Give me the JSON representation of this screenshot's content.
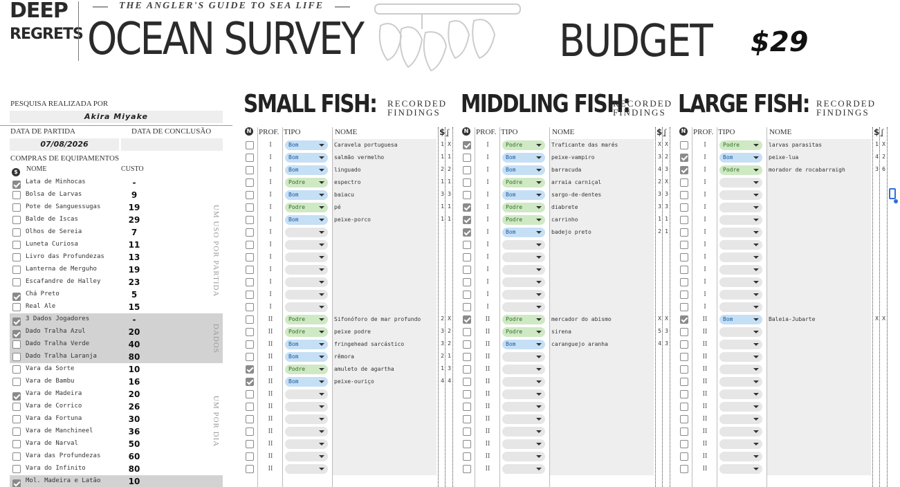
{
  "header": {
    "logo_line1": "DEEP",
    "logo_line2": "REGRETS",
    "tagline": "THE ANGLER'S GUIDE TO SEA LIFE",
    "title": "OCEAN SURVEY",
    "budget_label": "BUDGET",
    "budget_value": "$29"
  },
  "left": {
    "surveyor_label": "PESQUISA REALIZADA POR",
    "surveyor_name": "Akira Miyake",
    "departure_label": "DATA DE PARTIDA",
    "conclusion_label": "DATA DE CONCLUSÃO",
    "departure_date": "07/08/2026",
    "conclusion_date": "",
    "equipment_label": "COMPRAS DE EQUIPAMENTOS",
    "col_name": "NOME",
    "col_cost": "CUSTO",
    "group_once": "UM USO POR PARTIDA",
    "group_dice": "DADOS",
    "group_daily": "UM POR DIA",
    "equipment": [
      {
        "name": "Lata de Minhocas",
        "cost": "-",
        "checked": true,
        "grey": false
      },
      {
        "name": "Bolsa de Larvas",
        "cost": "9",
        "checked": false,
        "grey": false
      },
      {
        "name": "Pote de Sanguessugas",
        "cost": "19",
        "checked": false,
        "grey": false
      },
      {
        "name": "Balde de Iscas",
        "cost": "29",
        "checked": false,
        "grey": false
      },
      {
        "name": "Olhos de Sereia",
        "cost": "7",
        "checked": false,
        "grey": false
      },
      {
        "name": "Luneta Curiosa",
        "cost": "11",
        "checked": false,
        "grey": false
      },
      {
        "name": "Livro das Profundezas",
        "cost": "13",
        "checked": false,
        "grey": false
      },
      {
        "name": "Lanterna de Merguho",
        "cost": "19",
        "checked": false,
        "grey": false
      },
      {
        "name": "Escafandre de Halley",
        "cost": "23",
        "checked": false,
        "grey": false
      },
      {
        "name": "Chá Preto",
        "cost": "5",
        "checked": true,
        "grey": false
      },
      {
        "name": "Real Ale",
        "cost": "15",
        "checked": false,
        "grey": false
      },
      {
        "name": "3 Dados Jogadores",
        "cost": "-",
        "checked": true,
        "grey": true
      },
      {
        "name": "Dado Tralha Azul",
        "cost": "20",
        "checked": true,
        "grey": true
      },
      {
        "name": "Dado Tralha Verde",
        "cost": "40",
        "checked": false,
        "grey": true
      },
      {
        "name": "Dado Tralha Laranja",
        "cost": "80",
        "checked": false,
        "grey": true
      },
      {
        "name": "Vara da Sorte",
        "cost": "10",
        "checked": false,
        "grey": false
      },
      {
        "name": "Vara de Bambu",
        "cost": "16",
        "checked": false,
        "grey": false
      },
      {
        "name": "Vara de Madeira",
        "cost": "20",
        "checked": true,
        "grey": false
      },
      {
        "name": "Vara de Corrico",
        "cost": "26",
        "checked": false,
        "grey": false
      },
      {
        "name": "Vara da Fortuna",
        "cost": "30",
        "checked": false,
        "grey": false
      },
      {
        "name": "Vara de Manchineel",
        "cost": "36",
        "checked": false,
        "grey": false
      },
      {
        "name": "Vara de Narval",
        "cost": "50",
        "checked": false,
        "grey": false
      },
      {
        "name": "Vara das Profundezas",
        "cost": "60",
        "checked": false,
        "grey": false
      },
      {
        "name": "Vara do Infinito",
        "cost": "80",
        "checked": false,
        "grey": false
      },
      {
        "name": "Mol. Madeira e Latão",
        "cost": "10",
        "checked": true,
        "grey": true
      }
    ]
  },
  "sections": [
    {
      "title": "SMALL FISH:",
      "sub1": "RECORDED",
      "sub2": "FINDINGS",
      "col_prof": "PROF.",
      "col_tipo": "TIPO",
      "col_nome": "NOME",
      "rows": [
        {
          "checked": false,
          "prof": "I",
          "tipo": "Bom",
          "nome": "Caravela portuguesa",
          "v1": "1",
          "v2": "X"
        },
        {
          "checked": false,
          "prof": "I",
          "tipo": "Bom",
          "nome": "salmão vermelho",
          "v1": "1",
          "v2": "1"
        },
        {
          "checked": false,
          "prof": "I",
          "tipo": "Bom",
          "nome": "linguado",
          "v1": "2",
          "v2": "2"
        },
        {
          "checked": false,
          "prof": "I",
          "tipo": "Podre",
          "nome": "espectro",
          "v1": "1",
          "v2": "1"
        },
        {
          "checked": false,
          "prof": "I",
          "tipo": "Bom",
          "nome": "baiacu",
          "v1": "3",
          "v2": "3"
        },
        {
          "checked": false,
          "prof": "I",
          "tipo": "Podre",
          "nome": "pé",
          "v1": "1",
          "v2": "1"
        },
        {
          "checked": false,
          "prof": "I",
          "tipo": "Bom",
          "nome": "peixe-porco",
          "v1": "1",
          "v2": "1"
        },
        {
          "checked": false,
          "prof": "I",
          "tipo": "",
          "nome": "",
          "v1": "",
          "v2": ""
        },
        {
          "checked": false,
          "prof": "I",
          "tipo": "",
          "nome": "",
          "v1": "",
          "v2": ""
        },
        {
          "checked": false,
          "prof": "I",
          "tipo": "",
          "nome": "",
          "v1": "",
          "v2": ""
        },
        {
          "checked": false,
          "prof": "I",
          "tipo": "",
          "nome": "",
          "v1": "",
          "v2": ""
        },
        {
          "checked": false,
          "prof": "I",
          "tipo": "",
          "nome": "",
          "v1": "",
          "v2": ""
        },
        {
          "checked": false,
          "prof": "I",
          "tipo": "",
          "nome": "",
          "v1": "",
          "v2": ""
        },
        {
          "checked": false,
          "prof": "I",
          "tipo": "",
          "nome": "",
          "v1": "",
          "v2": ""
        },
        {
          "checked": false,
          "prof": "II",
          "tipo": "Podre",
          "nome": "Sifonóforo de mar profundo",
          "v1": "2",
          "v2": "X"
        },
        {
          "checked": false,
          "prof": "II",
          "tipo": "Podre",
          "nome": "peixe podre",
          "v1": "3",
          "v2": "2"
        },
        {
          "checked": false,
          "prof": "II",
          "tipo": "Bom",
          "nome": "fringehead sarcástico",
          "v1": "3",
          "v2": "2"
        },
        {
          "checked": false,
          "prof": "II",
          "tipo": "Bom",
          "nome": "rêmora",
          "v1": "2",
          "v2": "1"
        },
        {
          "checked": true,
          "prof": "II",
          "tipo": "Podre",
          "nome": "amuleto de agartha",
          "v1": "1",
          "v2": "3"
        },
        {
          "checked": true,
          "prof": "II",
          "tipo": "Bom",
          "nome": "peixe-ouriço",
          "v1": "4",
          "v2": "4"
        },
        {
          "checked": false,
          "prof": "II",
          "tipo": "",
          "nome": "",
          "v1": "",
          "v2": ""
        },
        {
          "checked": false,
          "prof": "II",
          "tipo": "",
          "nome": "",
          "v1": "",
          "v2": ""
        },
        {
          "checked": false,
          "prof": "II",
          "tipo": "",
          "nome": "",
          "v1": "",
          "v2": ""
        },
        {
          "checked": false,
          "prof": "II",
          "tipo": "",
          "nome": "",
          "v1": "",
          "v2": ""
        },
        {
          "checked": false,
          "prof": "II",
          "tipo": "",
          "nome": "",
          "v1": "",
          "v2": ""
        },
        {
          "checked": false,
          "prof": "II",
          "tipo": "",
          "nome": "",
          "v1": "",
          "v2": ""
        },
        {
          "checked": false,
          "prof": "II",
          "tipo": "",
          "nome": "",
          "v1": "",
          "v2": ""
        }
      ]
    },
    {
      "title": "MIDDLING FISH:",
      "sub1": "RECORDED",
      "sub2": "FINDINGS",
      "col_prof": "PROF.",
      "col_tipo": "TIPO",
      "col_nome": "NOME",
      "rows": [
        {
          "checked": true,
          "prof": "I",
          "tipo": "Podre",
          "nome": "Traficante das marés",
          "v1": "X",
          "v2": "X"
        },
        {
          "checked": false,
          "prof": "I",
          "tipo": "Bom",
          "nome": "peixe-vampiro",
          "v1": "3",
          "v2": "2"
        },
        {
          "checked": false,
          "prof": "I",
          "tipo": "Bom",
          "nome": "barracuda",
          "v1": "4",
          "v2": "3"
        },
        {
          "checked": false,
          "prof": "I",
          "tipo": "Podre",
          "nome": "arraia carniçal",
          "v1": "2",
          "v2": "X"
        },
        {
          "checked": false,
          "prof": "I",
          "tipo": "Bom",
          "nome": "sargo-de-dentes",
          "v1": "3",
          "v2": "3"
        },
        {
          "checked": true,
          "prof": "I",
          "tipo": "Podre",
          "nome": "diabrete",
          "v1": "3",
          "v2": "3"
        },
        {
          "checked": true,
          "prof": "I",
          "tipo": "Podre",
          "nome": "carrinho",
          "v1": "1",
          "v2": "1"
        },
        {
          "checked": true,
          "prof": "I",
          "tipo": "Bom",
          "nome": "badejo preto",
          "v1": "2",
          "v2": "1"
        },
        {
          "checked": false,
          "prof": "I",
          "tipo": "",
          "nome": "",
          "v1": "",
          "v2": ""
        },
        {
          "checked": false,
          "prof": "I",
          "tipo": "",
          "nome": "",
          "v1": "",
          "v2": ""
        },
        {
          "checked": false,
          "prof": "I",
          "tipo": "",
          "nome": "",
          "v1": "",
          "v2": ""
        },
        {
          "checked": false,
          "prof": "I",
          "tipo": "",
          "nome": "",
          "v1": "",
          "v2": ""
        },
        {
          "checked": false,
          "prof": "I",
          "tipo": "",
          "nome": "",
          "v1": "",
          "v2": ""
        },
        {
          "checked": false,
          "prof": "I",
          "tipo": "",
          "nome": "",
          "v1": "",
          "v2": ""
        },
        {
          "checked": true,
          "prof": "II",
          "tipo": "Podre",
          "nome": "mercador do abismo",
          "v1": "X",
          "v2": "X"
        },
        {
          "checked": false,
          "prof": "II",
          "tipo": "Podre",
          "nome": "sirena",
          "v1": "5",
          "v2": "3"
        },
        {
          "checked": false,
          "prof": "II",
          "tipo": "Bom",
          "nome": "caranguejo aranha",
          "v1": "4",
          "v2": "3"
        },
        {
          "checked": false,
          "prof": "II",
          "tipo": "",
          "nome": "",
          "v1": "",
          "v2": ""
        },
        {
          "checked": false,
          "prof": "II",
          "tipo": "",
          "nome": "",
          "v1": "",
          "v2": ""
        },
        {
          "checked": false,
          "prof": "II",
          "tipo": "",
          "nome": "",
          "v1": "",
          "v2": ""
        },
        {
          "checked": false,
          "prof": "II",
          "tipo": "",
          "nome": "",
          "v1": "",
          "v2": ""
        },
        {
          "checked": false,
          "prof": "II",
          "tipo": "",
          "nome": "",
          "v1": "",
          "v2": ""
        },
        {
          "checked": false,
          "prof": "II",
          "tipo": "",
          "nome": "",
          "v1": "",
          "v2": ""
        },
        {
          "checked": false,
          "prof": "II",
          "tipo": "",
          "nome": "",
          "v1": "",
          "v2": ""
        },
        {
          "checked": false,
          "prof": "II",
          "tipo": "",
          "nome": "",
          "v1": "",
          "v2": ""
        },
        {
          "checked": false,
          "prof": "II",
          "tipo": "",
          "nome": "",
          "v1": "",
          "v2": ""
        },
        {
          "checked": false,
          "prof": "II",
          "tipo": "",
          "nome": "",
          "v1": "",
          "v2": ""
        }
      ]
    },
    {
      "title": "LARGE FISH:",
      "sub1": "RECORDED",
      "sub2": "FINDINGS",
      "col_prof": "PROF.",
      "col_tipo": "TIPO",
      "col_nome": "NOME",
      "rows": [
        {
          "checked": false,
          "prof": "I",
          "tipo": "Podre",
          "nome": "larvas parasitas",
          "v1": "1",
          "v2": "X"
        },
        {
          "checked": true,
          "prof": "I",
          "tipo": "Bom",
          "nome": "peixe-lua",
          "v1": "4",
          "v2": "2"
        },
        {
          "checked": true,
          "prof": "I",
          "tipo": "Podre",
          "nome": "morador de rocabarraigh",
          "v1": "3",
          "v2": "6"
        },
        {
          "checked": false,
          "prof": "I",
          "tipo": "",
          "nome": "",
          "v1": "",
          "v2": ""
        },
        {
          "checked": false,
          "prof": "I",
          "tipo": "",
          "nome": "",
          "v1": "",
          "v2": ""
        },
        {
          "checked": false,
          "prof": "I",
          "tipo": "",
          "nome": "",
          "v1": "",
          "v2": ""
        },
        {
          "checked": false,
          "prof": "I",
          "tipo": "",
          "nome": "",
          "v1": "",
          "v2": ""
        },
        {
          "checked": false,
          "prof": "I",
          "tipo": "",
          "nome": "",
          "v1": "",
          "v2": ""
        },
        {
          "checked": false,
          "prof": "I",
          "tipo": "",
          "nome": "",
          "v1": "",
          "v2": ""
        },
        {
          "checked": false,
          "prof": "I",
          "tipo": "",
          "nome": "",
          "v1": "",
          "v2": ""
        },
        {
          "checked": false,
          "prof": "I",
          "tipo": "",
          "nome": "",
          "v1": "",
          "v2": ""
        },
        {
          "checked": false,
          "prof": "I",
          "tipo": "",
          "nome": "",
          "v1": "",
          "v2": ""
        },
        {
          "checked": false,
          "prof": "I",
          "tipo": "",
          "nome": "",
          "v1": "",
          "v2": ""
        },
        {
          "checked": false,
          "prof": "I",
          "tipo": "",
          "nome": "",
          "v1": "",
          "v2": ""
        },
        {
          "checked": true,
          "prof": "II",
          "tipo": "Bom",
          "nome": "Baleia-Jubarte",
          "v1": "X",
          "v2": "X"
        },
        {
          "checked": false,
          "prof": "II",
          "tipo": "",
          "nome": "",
          "v1": "",
          "v2": ""
        },
        {
          "checked": false,
          "prof": "II",
          "tipo": "",
          "nome": "",
          "v1": "",
          "v2": ""
        },
        {
          "checked": false,
          "prof": "II",
          "tipo": "",
          "nome": "",
          "v1": "",
          "v2": ""
        },
        {
          "checked": false,
          "prof": "II",
          "tipo": "",
          "nome": "",
          "v1": "",
          "v2": ""
        },
        {
          "checked": false,
          "prof": "II",
          "tipo": "",
          "nome": "",
          "v1": "",
          "v2": ""
        },
        {
          "checked": false,
          "prof": "II",
          "tipo": "",
          "nome": "",
          "v1": "",
          "v2": ""
        },
        {
          "checked": false,
          "prof": "II",
          "tipo": "",
          "nome": "",
          "v1": "",
          "v2": ""
        },
        {
          "checked": false,
          "prof": "II",
          "tipo": "",
          "nome": "",
          "v1": "",
          "v2": ""
        },
        {
          "checked": false,
          "prof": "II",
          "tipo": "",
          "nome": "",
          "v1": "",
          "v2": ""
        },
        {
          "checked": false,
          "prof": "II",
          "tipo": "",
          "nome": "",
          "v1": "",
          "v2": ""
        },
        {
          "checked": false,
          "prof": "II",
          "tipo": "",
          "nome": "",
          "v1": "",
          "v2": ""
        },
        {
          "checked": false,
          "prof": "II",
          "tipo": "",
          "nome": "",
          "v1": "",
          "v2": ""
        }
      ]
    }
  ],
  "colors": {
    "bom_bg": "#c5dff5",
    "podre_bg": "#cfe9c4",
    "grey_row": "#d2d2d2",
    "field_bg": "#eeeeee"
  }
}
